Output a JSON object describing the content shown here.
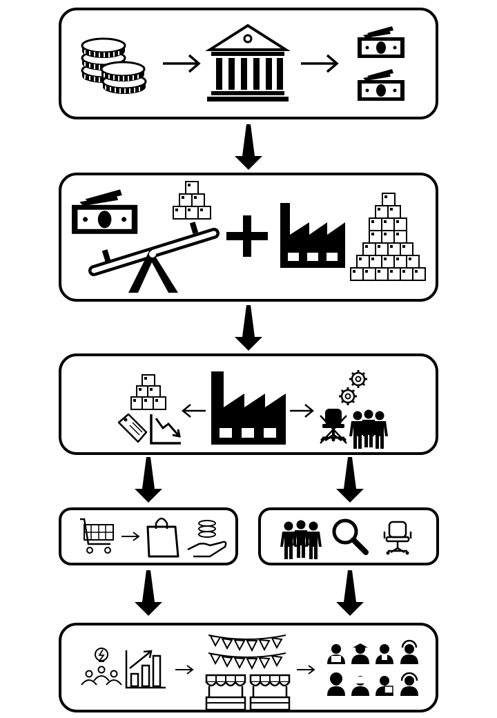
{
  "diagram": {
    "stages": [
      {
        "id": "bank-lending",
        "icons": [
          "coins-stack-icon",
          "arrow-right-icon",
          "bank-building-icon",
          "arrow-right-icon",
          "banknotes-icon"
        ]
      },
      {
        "id": "money-to-production",
        "icons": [
          "banknotes-icon",
          "seesaw-icon",
          "boxes-small-icon",
          "plus-icon",
          "factory-icon",
          "boxes-pyramid-icon"
        ]
      },
      {
        "id": "factory-outputs",
        "icons": [
          "boxes-small-icon",
          "price-tag-icon",
          "falling-chart-icon",
          "arrow-left-icon",
          "factory-icon",
          "arrow-right-icon",
          "gears-icon",
          "empty-office-chair-icon",
          "workers-group-icon"
        ]
      },
      {
        "id": "consumer-spending",
        "icons": [
          "shopping-cart-icon",
          "arrow-right-icon",
          "shopping-bag-icon",
          "coins-in-hand-icon"
        ]
      },
      {
        "id": "job-search",
        "icons": [
          "workers-group-icon",
          "magnifier-icon",
          "office-chair-icon"
        ]
      },
      {
        "id": "new-business-and-jobs",
        "icons": [
          "idea-team-icon",
          "growth-chart-icon",
          "arrow-right-icon",
          "bunting-icon",
          "market-stall-icon",
          "arrow-right-icon",
          "professionals-group-icon"
        ]
      }
    ],
    "connectors": [
      "down-arrow",
      "down-arrow",
      "down-arrow",
      "down-arrow",
      "down-arrow",
      "down-arrow"
    ],
    "colors": {
      "ink": "#000000",
      "paper": "#ffffff"
    }
  }
}
